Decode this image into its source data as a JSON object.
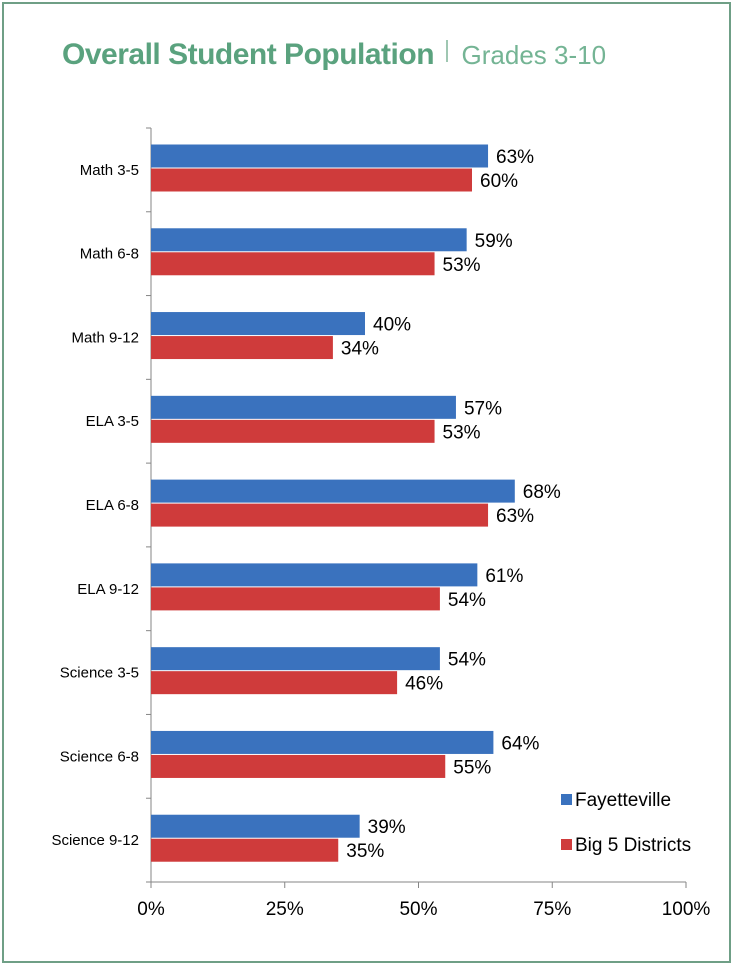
{
  "header": {
    "title": "Overall Student Population",
    "subtitle": "Grades 3-10"
  },
  "colors": {
    "frame": "#6f9f86",
    "title": "#5aa27e",
    "Fayetteville": "#3a72be",
    "Big 5 Districts": "#cf3b3b"
  },
  "chart_data": {
    "type": "bar",
    "orientation": "horizontal",
    "title": "",
    "xlabel": "",
    "ylabel": "",
    "categories": [
      "Math 3-5",
      "Math 6-8",
      "Math 9-12",
      "ELA 3-5",
      "ELA 6-8",
      "ELA 9-12",
      "Science 3-5",
      "Science 6-8",
      "Science 9-12"
    ],
    "series": [
      {
        "name": "Fayetteville",
        "color": "#3a72be",
        "values": [
          63,
          59,
          40,
          57,
          68,
          61,
          54,
          64,
          39
        ]
      },
      {
        "name": "Big 5 Districts",
        "color": "#cf3b3b",
        "values": [
          60,
          53,
          34,
          53,
          63,
          54,
          46,
          55,
          35
        ]
      }
    ],
    "xlim": [
      0,
      100
    ],
    "xticks": [
      0,
      25,
      50,
      75,
      100
    ],
    "tick_format": "%",
    "value_format": "%",
    "grid": false,
    "legend": "bottom-right"
  }
}
